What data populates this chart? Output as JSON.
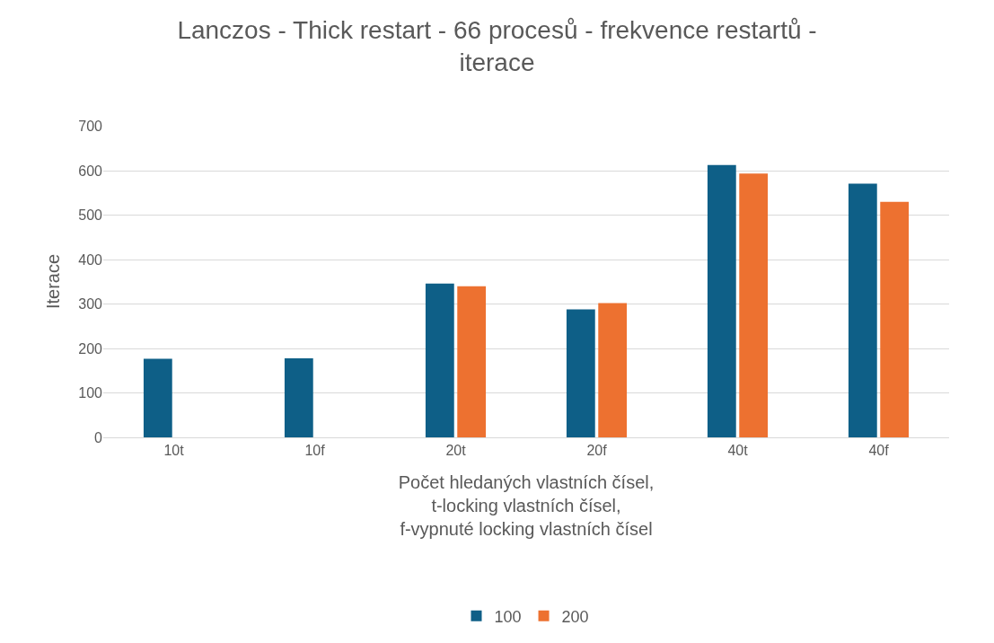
{
  "chart_data": {
    "type": "bar",
    "title": "Lanczos - Thick restart - 66 procesů - frekvence restartů - iterace",
    "xlabel": "Počet hledaných vlastních čísel,\nt-locking vlastních čísel,\nf-vypnuté locking vlastních čísel",
    "ylabel": "Iterace",
    "categories": [
      "10t",
      "10f",
      "20t",
      "20f",
      "40t",
      "40f"
    ],
    "series": [
      {
        "name": "100",
        "color": "#0e5f87",
        "values": [
          177,
          178,
          346,
          288,
          613,
          571
        ]
      },
      {
        "name": "200",
        "color": "#ed7130",
        "values": [
          null,
          null,
          340,
          302,
          594,
          530
        ]
      }
    ],
    "ylim": [
      0,
      700
    ],
    "yticks": [
      0,
      100,
      200,
      300,
      400,
      500,
      600,
      700
    ],
    "grid": "y",
    "legend": "bottom"
  }
}
